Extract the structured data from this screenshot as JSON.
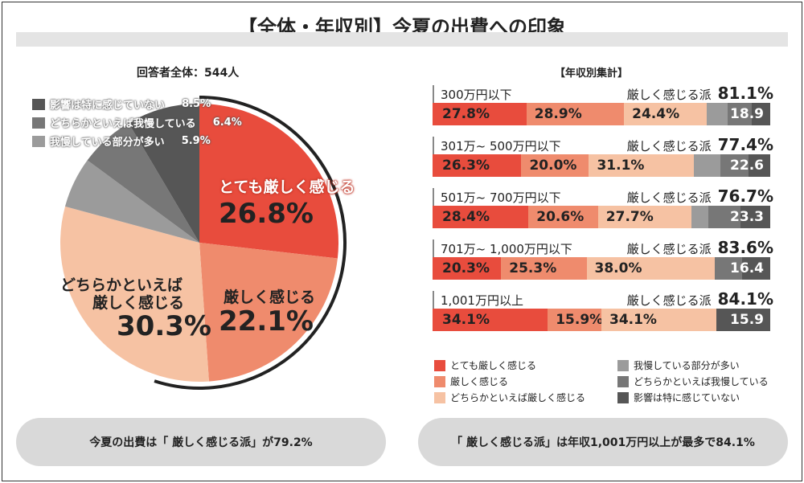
{
  "title": "【全体・年収別】今夏の出費への印象",
  "colors": {
    "very": "#e84c3d",
    "strict": "#ef8b6d",
    "somewhat": "#f6c2a3",
    "grey1": "#9b9b9b",
    "grey2": "#777777",
    "grey3": "#565656"
  },
  "chart_data": [
    {
      "type": "pie",
      "title": "回答者全体：544人",
      "slices": [
        {
          "label": "とても厳しく感じる",
          "value": 26.8,
          "display": "26.8%"
        },
        {
          "label": "厳しく感じる",
          "value": 22.1,
          "display": "22.1%"
        },
        {
          "label": "どちらかといえば厳しく感じる",
          "value": 30.3,
          "display": "30.3%"
        },
        {
          "label": "我慢している部分が多い",
          "value": 5.9,
          "display": "5.9%"
        },
        {
          "label": "どちらかといえば我慢している",
          "value": 6.4,
          "display": "6.4%"
        },
        {
          "label": "影響は特に感じていない",
          "value": 8.5,
          "display": "8.5%"
        }
      ]
    },
    {
      "type": "bar",
      "stacked": true,
      "orientation": "horizontal",
      "title": "【年収別集計】",
      "summary_label": "厳しく感じる派",
      "categories": [
        "300万円以下",
        "301万~ 500万円以下",
        "501万~ 700万円以下",
        "701万~ 1,000万円以下",
        "1,001万円以上"
      ],
      "summary": [
        "81.1%",
        "77.4%",
        "76.7%",
        "83.6%",
        "84.1%"
      ],
      "grey_total_labels": [
        "18.9",
        "22.6",
        "23.3",
        "16.4",
        "15.9"
      ],
      "series": [
        {
          "name": "とても厳しく感じる",
          "values": [
            27.8,
            26.3,
            28.4,
            20.3,
            34.1
          ]
        },
        {
          "name": "厳しく感じる",
          "values": [
            28.9,
            20.0,
            20.6,
            25.3,
            15.9
          ]
        },
        {
          "name": "どちらかといえば厳しく感じる",
          "values": [
            24.4,
            31.1,
            27.7,
            38.0,
            34.1
          ]
        },
        {
          "name": "我慢している部分が多い",
          "values": [
            6.4,
            7.9,
            5.0,
            0,
            0
          ]
        },
        {
          "name": "どちらかといえば我慢している",
          "values": [
            7.1,
            8.3,
            9.5,
            8.0,
            0
          ]
        },
        {
          "name": "影響は特に感じていない",
          "values": [
            5.4,
            6.4,
            8.8,
            8.4,
            15.9
          ]
        }
      ]
    }
  ],
  "pie_labels": {
    "very": "とても厳しく感じる",
    "strict": "厳しく感じる",
    "somewhat_1": "どちらかといえば",
    "somewhat_2": "厳しく感じる"
  },
  "footer": {
    "left": "今夏の出費は「 厳しく感じる派」が79.2%",
    "right": "「 厳しく感じる派」は年収1,001万円以上が最多で84.1%"
  }
}
